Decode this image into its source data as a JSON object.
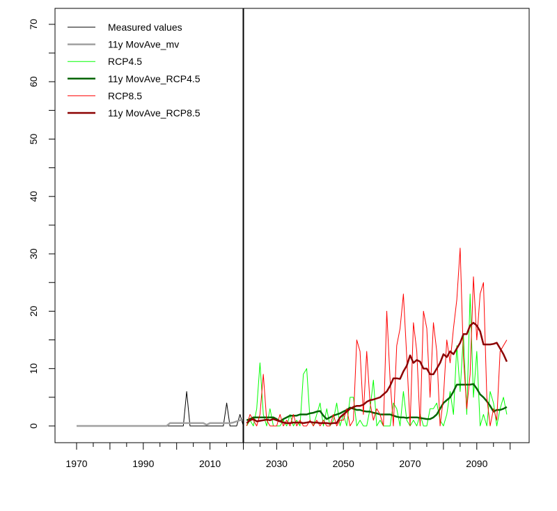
{
  "chart_data": {
    "type": "line",
    "title": "",
    "xlabel": "",
    "ylabel": "",
    "xlim": [
      1966,
      2105
    ],
    "ylim": [
      0,
      70
    ],
    "x_ticks": [
      1970,
      1975,
      1980,
      1985,
      1990,
      1995,
      2000,
      2005,
      2010,
      2015,
      2020,
      2025,
      2030,
      2035,
      2040,
      2045,
      2050,
      2055,
      2060,
      2065,
      2070,
      2075,
      2080,
      2085,
      2090,
      2095,
      2100
    ],
    "x_tick_labels": [
      "1970",
      "1990",
      "2010",
      "2030",
      "2050",
      "2070",
      "2090"
    ],
    "y_ticks": [
      0,
      5,
      10,
      15,
      20,
      25,
      30,
      35,
      40,
      45,
      50,
      55,
      60,
      65,
      70
    ],
    "y_tick_labels": [
      "0",
      "10",
      "20",
      "30",
      "40",
      "50",
      "60",
      "70"
    ],
    "vertical_line_x": 2020,
    "legend_position": "top-left",
    "series": [
      {
        "name": "Measured values",
        "color": "#000000",
        "width": 1,
        "x_start": 1970,
        "values": [
          0,
          0,
          0,
          0,
          0,
          0,
          0,
          0,
          0,
          0,
          0,
          0,
          0,
          0,
          0,
          0,
          0,
          0,
          0,
          0,
          0,
          0,
          0,
          0,
          0,
          0,
          0,
          0,
          0,
          0,
          0,
          0,
          0,
          6,
          0,
          0,
          0,
          0,
          0,
          0,
          0,
          0,
          0,
          0,
          0,
          4,
          0,
          0,
          0,
          2,
          0
        ]
      },
      {
        "name": "11y MovAve_mv",
        "color": "#a0a0a0",
        "width": 2.5,
        "x_start": 1970,
        "values": [
          0,
          0,
          0,
          0,
          0,
          0,
          0,
          0,
          0,
          0,
          0,
          0,
          0,
          0,
          0,
          0,
          0,
          0,
          0,
          0,
          0,
          0,
          0,
          0,
          0,
          0,
          0,
          0,
          0.5,
          0.5,
          0.5,
          0.5,
          0.5,
          0.5,
          0.5,
          0.5,
          0.5,
          0.5,
          0.5,
          0.2,
          0.5,
          0.5,
          0.5,
          0.5,
          0.5,
          0.5,
          0.5,
          0.6,
          0.8,
          1.0,
          1.0
        ]
      },
      {
        "name": "RCP4.5",
        "color": "#00ff00",
        "width": 1,
        "x_start": 2021,
        "values": [
          0,
          1,
          0,
          3,
          11,
          2,
          0,
          3,
          0,
          0,
          0,
          1,
          0,
          2,
          0,
          1,
          0,
          9,
          10,
          1,
          0,
          2,
          4,
          0,
          3,
          0,
          1,
          4,
          0,
          2,
          0,
          5,
          5,
          0,
          1,
          0,
          0,
          3,
          8,
          0,
          1,
          0,
          0,
          0,
          4,
          3,
          0,
          6,
          1,
          0,
          1,
          0,
          2,
          0,
          0,
          3,
          3,
          4,
          1,
          0,
          2,
          6,
          2,
          14,
          6,
          16,
          2,
          23,
          5,
          13,
          0,
          2,
          0,
          6,
          4,
          0,
          3,
          5,
          2
        ]
      },
      {
        "name": "11y MovAve_RCP4.5",
        "color": "#006400",
        "width": 2.5,
        "x_start": 2021,
        "values": [
          1.0,
          1.2,
          1.5,
          1.5,
          1.5,
          1.5,
          1.5,
          1.5,
          1.5,
          1.2,
          0.8,
          1.2,
          1.5,
          1.8,
          1.8,
          1.8,
          2.0,
          2.0,
          2.0,
          2.2,
          2.3,
          2.5,
          2.6,
          1.8,
          1.2,
          1.5,
          1.8,
          2.0,
          2.2,
          2.5,
          2.8,
          3.2,
          3.0,
          2.8,
          2.8,
          2.6,
          2.5,
          2.5,
          2.3,
          2.2,
          2.0,
          2.0,
          2.0,
          2.0,
          1.8,
          1.6,
          1.5,
          1.5,
          1.4,
          1.5,
          1.5,
          1.5,
          1.4,
          1.3,
          1.2,
          1.2,
          1.5,
          2.0,
          3.0,
          4.0,
          4.5,
          5.0,
          6.0,
          7.2,
          7.2,
          7.2,
          7.2,
          7.2,
          7.3,
          6.5,
          5.5,
          5.0,
          4.3,
          3.5,
          2.5,
          2.8,
          2.8,
          3.0,
          3.3
        ]
      },
      {
        "name": "RCP8.5",
        "color": "#ff0000",
        "width": 1,
        "x_start": 2021,
        "values": [
          0,
          2,
          1,
          0,
          2,
          9,
          1,
          0,
          0,
          0,
          2,
          0,
          1,
          0,
          2,
          0,
          1,
          0,
          0,
          1,
          0,
          1,
          0,
          1,
          0,
          0,
          2,
          0,
          1,
          1,
          3,
          0,
          1,
          15,
          13,
          2,
          13,
          4,
          1,
          3,
          2,
          0,
          20,
          8,
          0,
          14,
          17,
          23,
          12,
          0,
          18,
          13,
          0,
          20,
          17,
          5,
          18,
          13,
          0,
          5,
          15,
          11,
          17,
          22,
          31,
          12,
          3,
          9,
          26,
          15,
          23,
          25,
          5,
          0,
          3,
          1,
          13,
          14,
          15
        ]
      },
      {
        "name": "11y MovAve_RCP8.5",
        "color": "#8b0000",
        "width": 2.5,
        "x_start": 2021,
        "values": [
          0.5,
          1.0,
          1.2,
          0.8,
          0.9,
          1.0,
          1.1,
          1.0,
          1.2,
          1.0,
          0.8,
          0.6,
          0.5,
          0.5,
          0.6,
          0.6,
          0.6,
          0.5,
          0.6,
          0.7,
          0.6,
          0.6,
          0.5,
          0.5,
          0.5,
          0.4,
          0.5,
          0.5,
          1.5,
          2.0,
          2.5,
          3.0,
          3.3,
          3.5,
          3.5,
          3.7,
          4.2,
          4.5,
          4.6,
          4.8,
          5.0,
          5.5,
          6.0,
          7.0,
          8.3,
          8.3,
          8.2,
          9.5,
          10.5,
          12.3,
          11.0,
          11.5,
          11.2,
          10.0,
          10.0,
          9.0,
          9.0,
          10.0,
          11.0,
          12.5,
          12.0,
          13.0,
          12.5,
          13.5,
          14.5,
          16.0,
          16.0,
          17.5,
          18.0,
          17.5,
          16.5,
          14.2,
          14.2,
          14.2,
          14.3,
          14.5,
          13.5,
          12.5,
          11.2
        ]
      }
    ]
  }
}
